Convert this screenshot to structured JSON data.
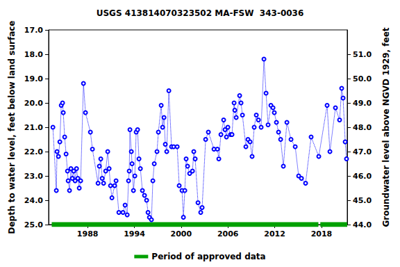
{
  "chart_data": {
    "type": "line",
    "title": "USGS 413814070323502 MA-FSW  343-0036",
    "y_label": "Depth to water level, feet below land surface",
    "y2_label": "Groundwater level above NGVD 1929, feet",
    "x": [
      1983.55,
      1983.99,
      1984.08,
      1984.26,
      1984.44,
      1984.62,
      1984.79,
      1984.88,
      1985.06,
      1985.24,
      1985.42,
      1985.51,
      1985.68,
      1985.86,
      1986.04,
      1986.22,
      1986.4,
      1986.58,
      1986.75,
      1986.93,
      1987.11,
      1987.47,
      1987.73,
      1988.36,
      1988.62,
      1989.34,
      1989.51,
      1989.69,
      1989.87,
      1990.05,
      1990.32,
      1990.58,
      1990.76,
      1990.94,
      1991.12,
      1991.47,
      1991.65,
      1992.01,
      1992.54,
      1992.81,
      1993.08,
      1993.25,
      1993.34,
      1993.43,
      1993.61,
      1993.7,
      1993.88,
      1994.06,
      1994.23,
      1994.41,
      1994.59,
      1994.77,
      1995.03,
      1995.3,
      1995.57,
      1995.75,
      1995.93,
      1996.19,
      1996.37,
      1996.55,
      1996.9,
      1997.08,
      1997.44,
      1997.62,
      1997.8,
      1997.97,
      1998.15,
      1998.42,
      1998.77,
      1999.04,
      1999.49,
      1999.75,
      2000.11,
      2000.29,
      2000.47,
      2000.64,
      2000.82,
      2001.09,
      2001.45,
      2001.62,
      2001.8,
      2002.16,
      2002.51,
      2002.69,
      2003.14,
      2003.49,
      2004.21,
      2004.65,
      2004.83,
      2005.1,
      2005.45,
      2005.63,
      2005.81,
      2005.99,
      2006.34,
      2006.52,
      2006.79,
      2006.88,
      2007.06,
      2007.5,
      2007.68,
      2007.86,
      2008.3,
      2008.57,
      2008.84,
      2009.1,
      2009.37,
      2009.64,
      2009.91,
      2010.26,
      2010.62,
      2010.89,
      2011.15,
      2011.51,
      2011.78,
      2011.95,
      2012.22,
      2012.49,
      2012.76,
      2013.11,
      2013.56,
      2014.09,
      2014.63,
      2015.07,
      2015.43,
      2015.96,
      2016.67,
      2017.65,
      2018.72,
      2019.08,
      2019.79,
      2020.32,
      2020.59,
      2020.77,
      2021.04,
      2021.21
    ],
    "series": [
      {
        "color": "#0000ff",
        "marker": "circle",
        "line_style": "dotted",
        "values": [
          21.0,
          23.6,
          22.0,
          22.2,
          21.6,
          20.1,
          20.0,
          20.4,
          21.4,
          22.1,
          22.8,
          23.2,
          23.6,
          22.7,
          23.1,
          22.8,
          23.2,
          22.7,
          23.1,
          23.5,
          23.2,
          19.2,
          20.4,
          21.2,
          21.9,
          23.3,
          22.6,
          22.3,
          23.1,
          23.3,
          22.8,
          22.0,
          22.7,
          23.4,
          23.9,
          23.4,
          23.2,
          24.5,
          24.5,
          24.2,
          24.6,
          23.2,
          22.8,
          21.1,
          22.0,
          22.5,
          23.6,
          23.0,
          21.2,
          21.1,
          22.3,
          22.7,
          23.6,
          23.8,
          24.0,
          24.5,
          24.7,
          24.8,
          23.2,
          22.5,
          22.0,
          21.2,
          20.1,
          21.0,
          20.6,
          21.7,
          22.0,
          19.5,
          21.8,
          21.8,
          21.8,
          23.4,
          23.6,
          24.7,
          23.6,
          22.3,
          22.6,
          22.9,
          22.8,
          22.0,
          22.3,
          24.1,
          24.5,
          24.3,
          21.5,
          21.2,
          21.9,
          21.9,
          22.3,
          21.3,
          20.7,
          21.1,
          21.4,
          21.0,
          21.3,
          21.3,
          20.0,
          20.3,
          20.6,
          19.7,
          20.0,
          20.5,
          21.8,
          21.5,
          21.6,
          22.2,
          21.0,
          20.5,
          20.7,
          21.0,
          18.2,
          19.6,
          20.9,
          20.1,
          20.2,
          20.4,
          20.8,
          21.2,
          21.5,
          22.6,
          20.8,
          21.5,
          21.8,
          23.0,
          23.1,
          23.3,
          21.4,
          22.2,
          20.1,
          22.0,
          20.2,
          20.7,
          19.4,
          19.8,
          21.6,
          22.3
        ]
      }
    ],
    "approved_periods": {
      "name": "Period of approved data",
      "color": "#00a000",
      "periods": [
        [
          1983.4,
          2017.6
        ],
        [
          2017.85,
          2021.3
        ]
      ]
    },
    "xlim": [
      1983,
      2021.3
    ],
    "xticks": [
      1988,
      1994,
      2000,
      2006,
      2012,
      2018
    ],
    "ylim": [
      25,
      17
    ],
    "yticks": [
      {
        "value": 17,
        "label": "17.0"
      },
      {
        "value": 18,
        "label": "18.0"
      },
      {
        "value": 19,
        "label": "19.0"
      },
      {
        "value": 20,
        "label": "20.0"
      },
      {
        "value": 21,
        "label": "21.0"
      },
      {
        "value": 22,
        "label": "22.0"
      },
      {
        "value": 23,
        "label": "23.0"
      },
      {
        "value": 24,
        "label": "24.0"
      },
      {
        "value": 25,
        "label": "25.0"
      }
    ],
    "y2lim": [
      44,
      52
    ],
    "y2ticks": [
      {
        "value": 44,
        "label": "44.0"
      },
      {
        "value": 45,
        "label": "45.0"
      },
      {
        "value": 46,
        "label": "46.0"
      },
      {
        "value": 47,
        "label": "47.0"
      },
      {
        "value": 48,
        "label": "48.0"
      },
      {
        "value": 49,
        "label": "49.0"
      },
      {
        "value": 50,
        "label": "50.0"
      },
      {
        "value": 51,
        "label": "51.0"
      }
    ],
    "grid": false,
    "legend": "bottom"
  }
}
